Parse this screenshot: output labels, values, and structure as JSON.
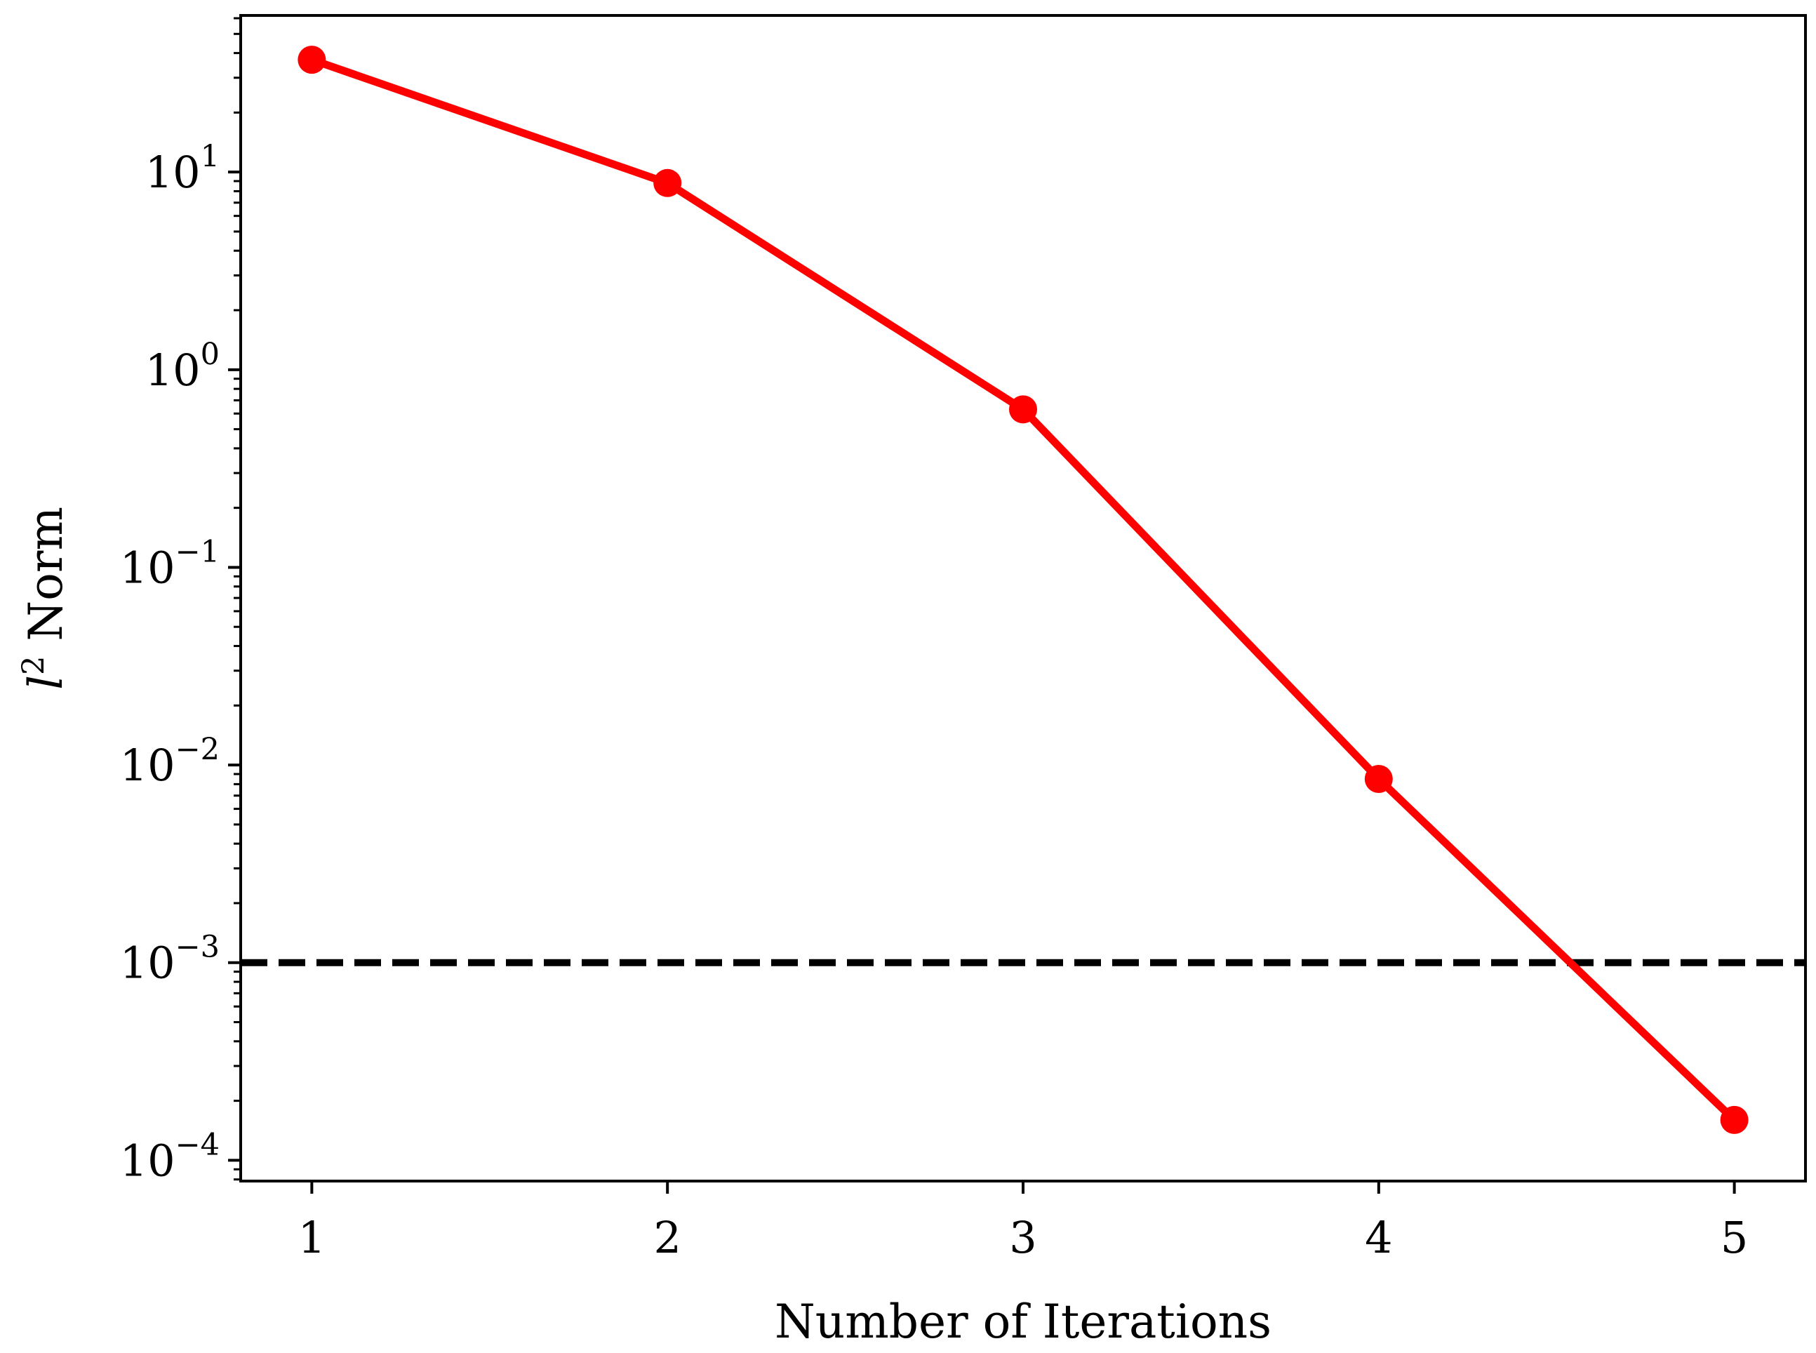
{
  "chart_data": {
    "type": "line",
    "title": "",
    "xlabel": "Number of Iterations",
    "ylabel": {
      "base": "l",
      "superscript": "2",
      "rest": " Norm"
    },
    "y_scale": "log",
    "xlim": [
      0.8,
      5.2
    ],
    "ylim": [
      7.85e-05,
      62
    ],
    "grid": false,
    "x_ticks": [
      {
        "value": 1,
        "label": "1"
      },
      {
        "value": 2,
        "label": "2"
      },
      {
        "value": 3,
        "label": "3"
      },
      {
        "value": 4,
        "label": "4"
      },
      {
        "value": 5,
        "label": "5"
      }
    ],
    "y_ticks": [
      {
        "value": 0.0001,
        "base": "10",
        "exponent": "−4"
      },
      {
        "value": 0.001,
        "base": "10",
        "exponent": "−3"
      },
      {
        "value": 0.01,
        "base": "10",
        "exponent": "−2"
      },
      {
        "value": 0.1,
        "base": "10",
        "exponent": "−1"
      },
      {
        "value": 1,
        "base": "10",
        "exponent": "0"
      },
      {
        "value": 10,
        "base": "10",
        "exponent": "1"
      }
    ],
    "series": [
      {
        "color": "#ff0000",
        "marker": "circle",
        "x": [
          1,
          2,
          3,
          4,
          5
        ],
        "y": [
          37,
          8.8,
          0.63,
          0.0085,
          0.00016
        ]
      }
    ],
    "reference_lines": [
      {
        "orientation": "horizontal",
        "y": 0.001,
        "style": "dashed",
        "color": "#000000"
      }
    ]
  }
}
